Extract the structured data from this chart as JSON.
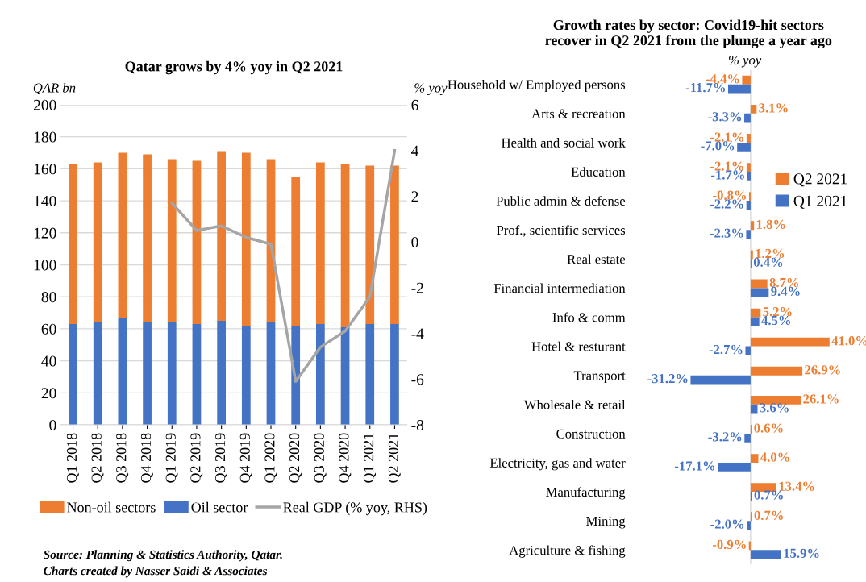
{
  "chart_data": [
    {
      "type": "bar",
      "title": "Qatar grows by 4% yoy in Q2 2021",
      "ylabel": "QAR bn",
      "y2label": "% yoy",
      "stacked": true,
      "categories": [
        "Q1 2018",
        "Q2 2018",
        "Q3 2018",
        "Q4 2018",
        "Q1 2019",
        "Q2 2019",
        "Q3 2019",
        "Q4 2019",
        "Q1 2020",
        "Q2 2020",
        "Q3 2020",
        "Q4 2020",
        "Q1 2021",
        "Q2 2021"
      ],
      "series": [
        {
          "name": "Oil sector",
          "color": "#4472c4",
          "values": [
            63,
            64,
            67,
            64,
            64,
            63,
            65,
            62,
            64,
            62,
            63,
            61,
            63,
            63
          ]
        },
        {
          "name": "Non-oil sectors",
          "color": "#ed7d31",
          "values": [
            100,
            100,
            103,
            105,
            102,
            102,
            106,
            108,
            102,
            93,
            101,
            102,
            99,
            99
          ]
        },
        {
          "name": "Real GDP (% yoy, RHS)",
          "type": "line",
          "axis": "y2",
          "color": "#a5a5a5",
          "values": [
            null,
            null,
            null,
            null,
            1.7,
            0.5,
            0.7,
            0.2,
            -0.1,
            -6.1,
            -4.6,
            -3.9,
            -2.4,
            4.0
          ]
        }
      ],
      "ylim": [
        0,
        200
      ],
      "yticks": [
        0,
        20,
        40,
        60,
        80,
        100,
        120,
        140,
        160,
        180,
        200
      ],
      "y2lim": [
        -8,
        6
      ],
      "y2ticks": [
        -8,
        -6,
        -4,
        -2,
        0,
        2,
        4,
        6
      ],
      "grid": "y",
      "legend": "bottom",
      "annotations": [
        "Source: Planning & Statistics Authority, Qatar.",
        "Charts created by Nasser Saidi & Associates"
      ]
    },
    {
      "type": "bar",
      "orientation": "horizontal",
      "title": "Growth rates by sector: Covid19-hit sectors\nrecover in Q2 2021 from the plunge a year ago",
      "xlabel": "% yoy",
      "categories": [
        "Household w/ Employed persons",
        "Arts & recreation",
        "Health and social work",
        "Education",
        "Public admin & defense",
        "Prof., scientific services",
        "Real estate",
        "Financial intermediation",
        "Info & comm",
        "Hotel & resturant",
        "Transport",
        "Wholesale & retail",
        "Construction",
        "Electricity, gas and water",
        "Manufacturing",
        "Mining",
        "Agriculture & fishing"
      ],
      "series": [
        {
          "name": "Q2 2021",
          "color": "#ed7d31",
          "values": [
            -4.4,
            3.1,
            -2.1,
            -2.1,
            -0.8,
            1.8,
            1.2,
            8.7,
            5.2,
            41.0,
            26.9,
            26.1,
            0.6,
            4.0,
            13.4,
            0.7,
            -0.9
          ],
          "value_labels": [
            "-4.4%",
            "3.1%",
            "-2.1%",
            "-2.1%",
            "-0.8%",
            "1.8%",
            "1.2%",
            "8.7%",
            "5.2%",
            "41.0%",
            "26.9%",
            "26.1%",
            "0.6%",
            "4.0%",
            "13.4%",
            "0.7%",
            "-0.9%"
          ]
        },
        {
          "name": "Q1 2021",
          "color": "#4472c4",
          "values": [
            -11.7,
            -3.3,
            -7.0,
            -1.7,
            -2.2,
            -2.3,
            0.4,
            9.4,
            4.5,
            -2.7,
            -31.2,
            3.6,
            -3.2,
            -17.1,
            0.7,
            -2.0,
            15.9
          ],
          "value_labels": [
            "-11.7%",
            "-3.3%",
            "-7.0%",
            "-1.7%",
            "-2.2%",
            "-2.3%",
            "0.4%",
            "9.4%",
            "4.5%",
            "-2.7%",
            "-31.2%",
            "3.6%",
            "-3.2%",
            "-17.1%",
            "0.7%",
            "-2.0%",
            "15.9%"
          ]
        }
      ],
      "legend": "right",
      "grid": false
    }
  ]
}
